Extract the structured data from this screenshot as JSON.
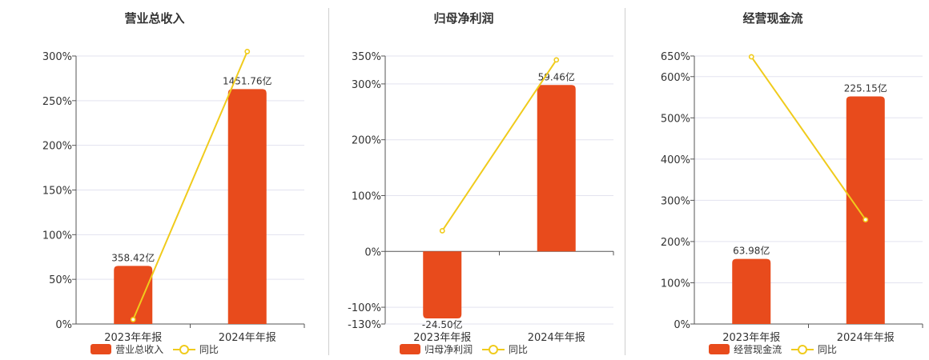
{
  "colors": {
    "bar": "#E84B1C",
    "line": "#F0CB1C",
    "grid": "#e3e3ef",
    "axis": "#555555"
  },
  "chart_data": [
    {
      "type": "bar",
      "title": "营业总收入",
      "categories": [
        "2023年年报",
        "2024年年报"
      ],
      "ylim": [
        0,
        300
      ],
      "yticks": [
        "0%",
        "50%",
        "100%",
        "150%",
        "200%",
        "250%",
        "300%"
      ],
      "series": [
        {
          "name": "营业总收入",
          "type": "bar",
          "values": [
            65,
            263
          ],
          "labels": [
            "358.42亿",
            "1451.76亿"
          ]
        },
        {
          "name": "同比",
          "type": "line",
          "values": [
            5,
            305
          ]
        }
      ],
      "legend": "bottom"
    },
    {
      "type": "bar",
      "title": "归母净利润",
      "categories": [
        "2023年年报",
        "2024年年报"
      ],
      "ylim": [
        -130,
        350
      ],
      "yticks": [
        "-130%",
        "-100%",
        "0%",
        "100%",
        "200%",
        "300%",
        "350%"
      ],
      "series": [
        {
          "name": "归母净利润",
          "type": "bar",
          "values": [
            -120,
            298
          ],
          "labels": [
            "-24.50亿",
            "59.46亿"
          ]
        },
        {
          "name": "同比",
          "type": "line",
          "values": [
            37,
            343
          ]
        }
      ],
      "legend": "bottom"
    },
    {
      "type": "bar",
      "title": "经营现金流",
      "categories": [
        "2023年年报",
        "2024年年报"
      ],
      "ylim": [
        0,
        650
      ],
      "yticks": [
        "0%",
        "100%",
        "200%",
        "300%",
        "400%",
        "500%",
        "600%",
        "650%"
      ],
      "series": [
        {
          "name": "经营现金流",
          "type": "bar",
          "values": [
            158,
            552
          ],
          "labels": [
            "63.98亿",
            "225.15亿"
          ]
        },
        {
          "name": "同比",
          "type": "line",
          "values": [
            648,
            253
          ]
        }
      ],
      "legend": "bottom"
    }
  ]
}
